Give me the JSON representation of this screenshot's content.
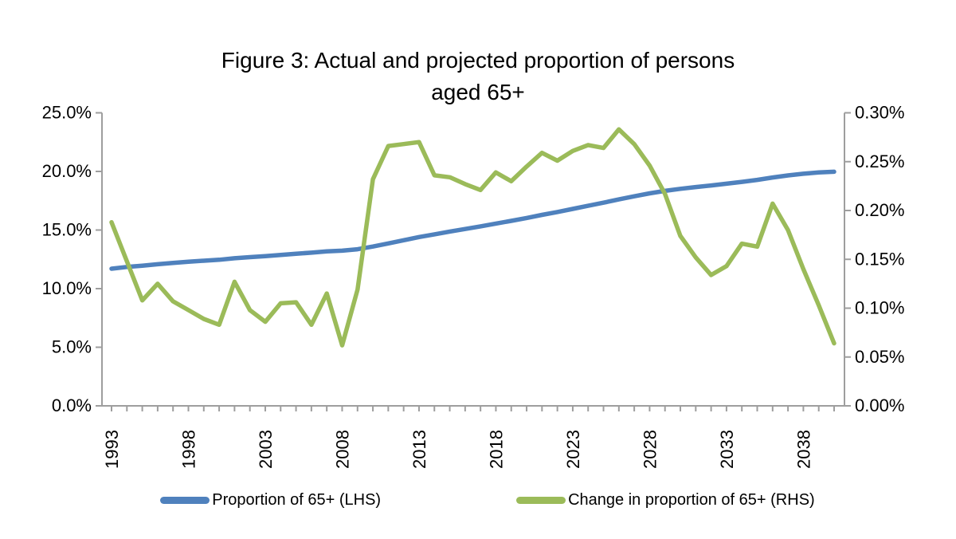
{
  "figure": {
    "title_line1": "Figure 3: Actual and projected proportion of persons",
    "title_line2": "aged 65+"
  },
  "colors": {
    "axis": "#9E9E9E",
    "lhs_series": "#4F81BD",
    "rhs_series": "#9BBB59",
    "text": "#000000"
  },
  "legend": {
    "items": [
      {
        "label": "Proportion of 65+ (LHS)",
        "color": "#4F81BD"
      },
      {
        "label": "Change in proportion of 65+ (RHS)",
        "color": "#9BBB59"
      }
    ]
  },
  "chart_data": {
    "type": "line",
    "title": "Figure 3: Actual and projected proportion of persons aged 65+",
    "grid": false,
    "legend_position": "bottom",
    "x": [
      1993,
      1994,
      1995,
      1996,
      1997,
      1998,
      1999,
      2000,
      2001,
      2002,
      2003,
      2004,
      2005,
      2006,
      2007,
      2008,
      2009,
      2010,
      2011,
      2012,
      2013,
      2014,
      2015,
      2016,
      2017,
      2018,
      2019,
      2020,
      2021,
      2022,
      2023,
      2024,
      2025,
      2026,
      2027,
      2028,
      2029,
      2030,
      2031,
      2032,
      2033,
      2034,
      2035,
      2036,
      2037,
      2038,
      2039,
      2040
    ],
    "x_tick_labels": [
      "1993",
      "1998",
      "2003",
      "2008",
      "2013",
      "2018",
      "2023",
      "2028",
      "2033",
      "2038"
    ],
    "left_axis": {
      "min": 0,
      "max": 25,
      "tick_values": [
        0,
        5,
        10,
        15,
        20,
        25
      ],
      "tick_labels": [
        "0.0%",
        "5.0%",
        "10.0%",
        "15.0%",
        "20.0%",
        "25.0%"
      ]
    },
    "right_axis": {
      "min": 0,
      "max": 0.3,
      "tick_values": [
        0,
        0.05,
        0.1,
        0.15,
        0.2,
        0.25,
        0.3
      ],
      "tick_labels": [
        "0.00%",
        "0.05%",
        "0.10%",
        "0.15%",
        "0.20%",
        "0.25%",
        "0.30%"
      ]
    },
    "series": [
      {
        "name": "Proportion of 65+ (LHS)",
        "axis": "left",
        "color": "#4F81BD",
        "values": [
          11.7,
          11.85,
          11.96,
          12.08,
          12.19,
          12.29,
          12.38,
          12.46,
          12.59,
          12.69,
          12.77,
          12.88,
          12.98,
          13.07,
          13.18,
          13.24,
          13.36,
          13.59,
          13.86,
          14.13,
          14.4,
          14.63,
          14.87,
          15.09,
          15.31,
          15.55,
          15.78,
          16.03,
          16.29,
          16.54,
          16.8,
          17.07,
          17.33,
          17.61,
          17.88,
          18.13,
          18.34,
          18.52,
          18.67,
          18.8,
          18.95,
          19.11,
          19.28,
          19.48,
          19.66,
          19.8,
          19.91,
          19.97
        ]
      },
      {
        "name": "Change in proportion of 65+ (RHS)",
        "axis": "right",
        "color": "#9BBB59",
        "values": [
          0.188,
          0.148,
          0.108,
          0.125,
          0.107,
          0.098,
          0.089,
          0.083,
          0.127,
          0.098,
          0.086,
          0.105,
          0.106,
          0.083,
          0.115,
          0.062,
          0.119,
          0.232,
          0.266,
          0.268,
          0.27,
          0.236,
          0.234,
          0.227,
          0.221,
          0.239,
          0.23,
          0.245,
          0.259,
          0.251,
          0.261,
          0.267,
          0.264,
          0.283,
          0.268,
          0.246,
          0.217,
          0.174,
          0.152,
          0.134,
          0.143,
          0.166,
          0.163,
          0.207,
          0.18,
          0.14,
          0.103,
          0.064
        ]
      }
    ]
  }
}
